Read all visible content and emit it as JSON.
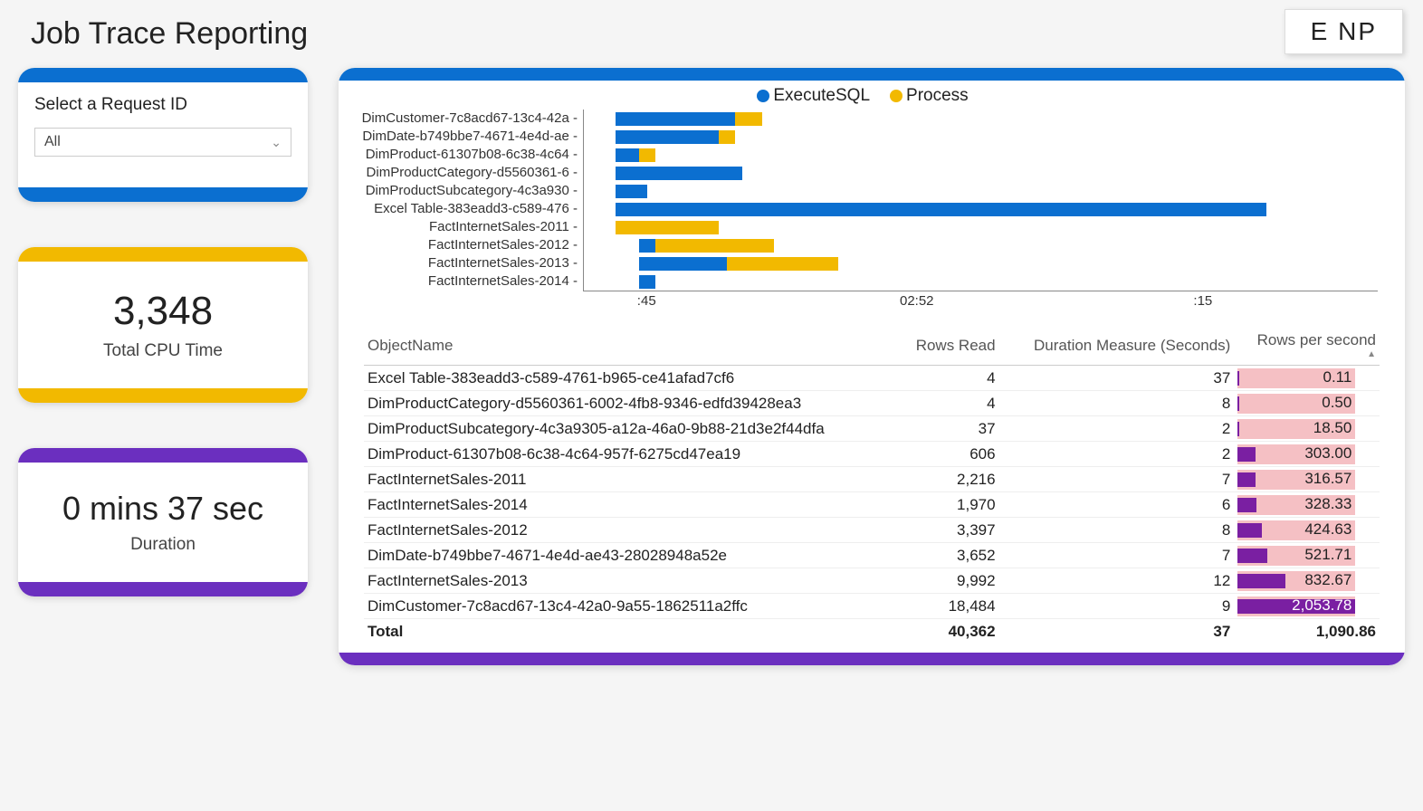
{
  "page": {
    "title": "Job Trace Reporting",
    "badge": "E NP"
  },
  "colors": {
    "blue": "#0b6fd0",
    "yellow": "#f2b900",
    "purple": "#6b2fbf",
    "bar_pink": "#f5c0c4",
    "bar_purple": "#7a1fa2",
    "white": "#ffffff"
  },
  "filter": {
    "label": "Select a Request ID",
    "selected": "All",
    "bar_color": "#0b6fd0"
  },
  "metric_cpu": {
    "value": "3,348",
    "label": "Total CPU Time",
    "bar_color": "#f2b900"
  },
  "metric_duration": {
    "value": "0 mins 37 sec",
    "label": "Duration",
    "bar_color": "#6b2fbf"
  },
  "chart": {
    "top_bar_color": "#0b6fd0",
    "bottom_bar_color": "#6b2fbf",
    "legend": [
      {
        "label": "ExecuteSQL",
        "color": "#0b6fd0"
      },
      {
        "label": "Process",
        "color": "#f2b900"
      }
    ],
    "x_ticks": [
      {
        "pos_pct": 8,
        "label": ":45"
      },
      {
        "pos_pct": 42,
        "label": "02:52"
      },
      {
        "pos_pct": 78,
        "label": ":15"
      }
    ],
    "rows": [
      {
        "label": "DimCustomer-7c8acd67-13c4-42a",
        "start_pct": 4,
        "exec_pct": 15,
        "proc_pct": 3.5
      },
      {
        "label": "DimDate-b749bbe7-4671-4e4d-ae",
        "start_pct": 4,
        "exec_pct": 13,
        "proc_pct": 2
      },
      {
        "label": "DimProduct-61307b08-6c38-4c64",
        "start_pct": 4,
        "exec_pct": 3,
        "proc_pct": 2
      },
      {
        "label": "DimProductCategory-d5560361-6",
        "start_pct": 4,
        "exec_pct": 16,
        "proc_pct": 0
      },
      {
        "label": "DimProductSubcategory-4c3a930",
        "start_pct": 4,
        "exec_pct": 4,
        "proc_pct": 0
      },
      {
        "label": "Excel Table-383eadd3-c589-476",
        "start_pct": 4,
        "exec_pct": 82,
        "proc_pct": 0
      },
      {
        "label": "FactInternetSales-2011",
        "start_pct": 4,
        "exec_pct": 0,
        "proc_pct": 13
      },
      {
        "label": "FactInternetSales-2012",
        "start_pct": 7,
        "exec_pct": 2,
        "proc_pct": 15
      },
      {
        "label": "FactInternetSales-2013",
        "start_pct": 7,
        "exec_pct": 11,
        "proc_pct": 14
      },
      {
        "label": "FactInternetSales-2014",
        "start_pct": 7,
        "exec_pct": 2,
        "proc_pct": 0
      }
    ]
  },
  "table": {
    "columns": [
      "ObjectName",
      "Rows Read",
      "Duration Measure (Seconds)",
      "Rows per second"
    ],
    "max_rps": 2053.78,
    "rows": [
      {
        "name": "Excel Table-383eadd3-c589-4761-b965-ce41afad7cf6",
        "rows_read": "4",
        "duration": "37",
        "rps": "0.11",
        "rps_val": 0.11
      },
      {
        "name": "DimProductCategory-d5560361-6002-4fb8-9346-edfd39428ea3",
        "rows_read": "4",
        "duration": "8",
        "rps": "0.50",
        "rps_val": 0.5
      },
      {
        "name": "DimProductSubcategory-4c3a9305-a12a-46a0-9b88-21d3e2f44dfa",
        "rows_read": "37",
        "duration": "2",
        "rps": "18.50",
        "rps_val": 18.5
      },
      {
        "name": "DimProduct-61307b08-6c38-4c64-957f-6275cd47ea19",
        "rows_read": "606",
        "duration": "2",
        "rps": "303.00",
        "rps_val": 303.0
      },
      {
        "name": "FactInternetSales-2011",
        "rows_read": "2,216",
        "duration": "7",
        "rps": "316.57",
        "rps_val": 316.57
      },
      {
        "name": "FactInternetSales-2014",
        "rows_read": "1,970",
        "duration": "6",
        "rps": "328.33",
        "rps_val": 328.33
      },
      {
        "name": "FactInternetSales-2012",
        "rows_read": "3,397",
        "duration": "8",
        "rps": "424.63",
        "rps_val": 424.63
      },
      {
        "name": "DimDate-b749bbe7-4671-4e4d-ae43-28028948a52e",
        "rows_read": "3,652",
        "duration": "7",
        "rps": "521.71",
        "rps_val": 521.71
      },
      {
        "name": "FactInternetSales-2013",
        "rows_read": "9,992",
        "duration": "12",
        "rps": "832.67",
        "rps_val": 832.67
      },
      {
        "name": "DimCustomer-7c8acd67-13c4-42a0-9a55-1862511a2ffc",
        "rows_read": "18,484",
        "duration": "9",
        "rps": "2,053.78",
        "rps_val": 2053.78
      }
    ],
    "total": {
      "name": "Total",
      "rows_read": "40,362",
      "duration": "37",
      "rps": "1,090.86"
    }
  }
}
